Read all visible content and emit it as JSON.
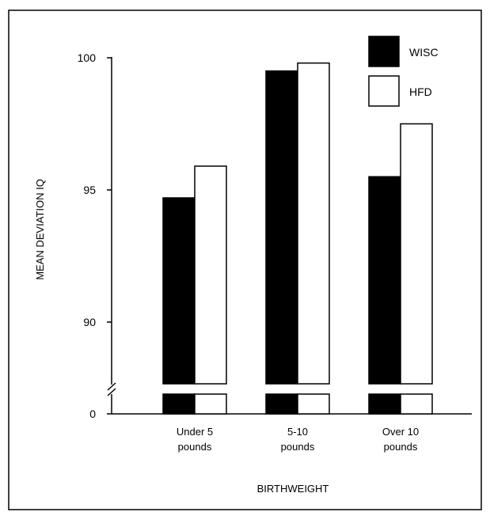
{
  "chart_data": {
    "type": "bar",
    "title": "",
    "xlabel": "BIRTHWEIGHT",
    "ylabel": "MEAN DEVIATION IQ",
    "categories": [
      [
        "Under 5",
        "pounds"
      ],
      [
        "5-10",
        "pounds"
      ],
      [
        "Over 10",
        "pounds"
      ]
    ],
    "series": [
      {
        "name": "WISC",
        "values": [
          94.7,
          99.5,
          95.5
        ],
        "color": "#000000"
      },
      {
        "name": "HFD",
        "values": [
          95.9,
          99.8,
          97.5
        ],
        "color": "#ffffff"
      }
    ],
    "ylim": [
      88,
      100
    ],
    "yticks": [
      "100",
      "95",
      "90"
    ],
    "ytick_values": [
      100,
      95,
      90
    ],
    "zero_label": "0",
    "axis_break": true,
    "grid": false,
    "legend_position": "top-right"
  }
}
